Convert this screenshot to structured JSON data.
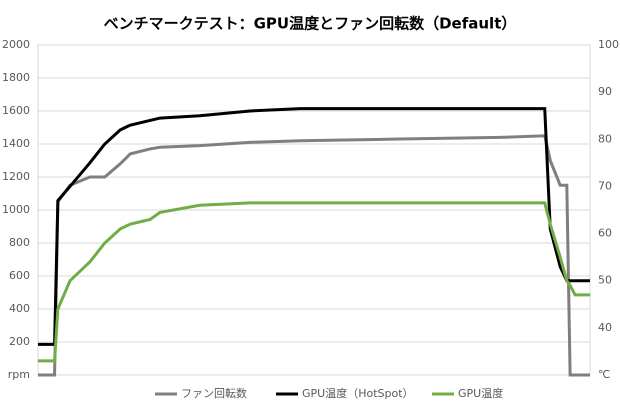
{
  "chart_data": {
    "type": "line",
    "title": "ベンチマークテスト：GPU温度とファン回転数（Default）",
    "x": [
      0,
      3,
      3.6,
      5.8,
      9.4,
      12.1,
      14.9,
      16.7,
      20.3,
      22.1,
      29.3,
      38.4,
      47.5,
      65.6,
      83.7,
      91.8,
      92.8,
      94.6,
      95.8,
      96.4,
      97.3,
      100
    ],
    "xlim": [
      0,
      100
    ],
    "ylim": [
      0,
      2000
    ],
    "yticks": [
      {
        "value": 0,
        "label": "rpm"
      },
      200,
      400,
      600,
      800,
      1000,
      1200,
      1400,
      1600,
      1800,
      2000
    ],
    "y2lim": [
      30,
      100
    ],
    "y2ticks": [
      {
        "value": 30,
        "label": "℃"
      },
      40,
      50,
      60,
      70,
      80,
      90,
      100
    ],
    "grid": true,
    "legend": "bottom",
    "series": [
      {
        "name": "ファン回転数",
        "color": "#7f7f7f",
        "values": [
          0,
          0,
          1050,
          1150,
          1200,
          1200,
          1280,
          1340,
          1370,
          1380,
          1390,
          1410,
          1420,
          1430,
          1440,
          1450,
          1300,
          1150,
          1150,
          0,
          0,
          0
        ]
      },
      {
        "name": "GPU温度（HotSpot）",
        "color": "#000000",
        "axis": "y2",
        "values": [
          36.5,
          36.5,
          67,
          70,
          75,
          79,
          82,
          83,
          84,
          84.5,
          85,
          86,
          86.5,
          86.5,
          86.5,
          86.5,
          61,
          53,
          50,
          50,
          50,
          50
        ]
      },
      {
        "name": "GPU温度",
        "color": "#70ad47",
        "axis": "y2",
        "values": [
          33,
          33,
          44,
          50,
          54,
          58,
          61,
          62,
          63,
          64.5,
          66,
          66.5,
          66.5,
          66.5,
          66.5,
          66.5,
          62,
          55,
          50,
          49,
          47,
          47
        ]
      }
    ]
  }
}
